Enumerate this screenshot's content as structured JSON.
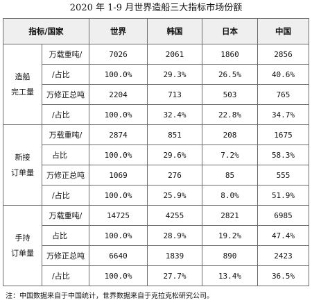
{
  "title": "2020 年 1-9 月世界造船三大指标市场份额",
  "header": [
    "指标/国家",
    "世界",
    "韩国",
    "日本",
    "中国"
  ],
  "groups": [
    {
      "name_lines": [
        "造船",
        "完工量"
      ],
      "rows": [
        {
          "unit": "万载重吨/",
          "values": [
            "7026",
            "2061",
            "1860",
            "2856"
          ]
        },
        {
          "unit": "/占比",
          "values": [
            "100.0%",
            "29.3%",
            "26.5%",
            "40.6%"
          ]
        },
        {
          "unit": "万修正总吨",
          "values": [
            "2204",
            "713",
            "503",
            "765"
          ]
        },
        {
          "unit": "/占比",
          "values": [
            "100.0%",
            "32.4%",
            "22.8%",
            "34.7%"
          ]
        }
      ]
    },
    {
      "name_lines": [
        "新接",
        "订单量"
      ],
      "rows": [
        {
          "unit": "万载重吨/",
          "values": [
            "2874",
            "851",
            "208",
            "1675"
          ]
        },
        {
          "unit": "占比",
          "values": [
            "100.0%",
            "29.6%",
            "7.2%",
            "58.3%"
          ]
        },
        {
          "unit": "万修正总吨",
          "values": [
            "1069",
            "276",
            "85",
            "555"
          ]
        },
        {
          "unit": "/占比",
          "values": [
            "100.0%",
            "25.9%",
            "8.0%",
            "51.9%"
          ]
        }
      ]
    },
    {
      "name_lines": [
        "手持",
        "订单量"
      ],
      "rows": [
        {
          "unit": "万载重吨/",
          "values": [
            "14725",
            "4255",
            "2821",
            "6985"
          ]
        },
        {
          "unit": "占比",
          "values": [
            "100.0%",
            "28.9%",
            "19.2%",
            "47.4%"
          ]
        },
        {
          "unit": "万修正总吨",
          "values": [
            "6640",
            "1839",
            "890",
            "2423"
          ]
        },
        {
          "unit": "/占比",
          "values": [
            "100.0%",
            "27.7%",
            "13.4%",
            "36.5%"
          ]
        }
      ]
    }
  ],
  "note": "注：中国数据来自于中国统计，世界数据来自于克拉克松研究公司。"
}
